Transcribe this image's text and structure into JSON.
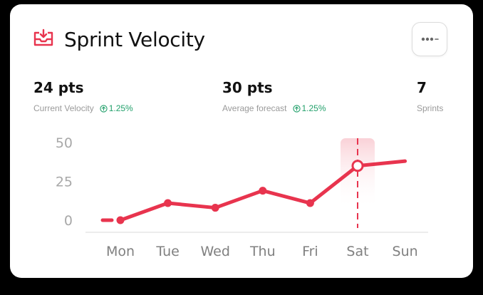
{
  "header": {
    "title": "Sprint Velocity",
    "icon": "download-tray-icon",
    "menu_icon": "more-options-icon"
  },
  "stats": [
    {
      "value": "24 pts",
      "label": "Current Velocity",
      "trend": "1.25%"
    },
    {
      "value": "30 pts",
      "label": "Average forecast",
      "trend": "1.25%"
    },
    {
      "value": "7",
      "label": "Sprints"
    }
  ],
  "colors": {
    "accent": "#e8344e",
    "trend": "#22a06b",
    "highlight": "#fde6e9"
  },
  "chart_data": {
    "type": "line",
    "categories": [
      "Mon",
      "Tue",
      "Wed",
      "Thu",
      "Fri",
      "Sat",
      "Sun"
    ],
    "series": [
      {
        "values": [
          0,
          11,
          8,
          19,
          11,
          35,
          38
        ]
      }
    ],
    "yticks": [
      "50",
      "25",
      "0"
    ],
    "ylim": [
      0,
      50
    ],
    "highlight_category": "Sat",
    "grid": false
  }
}
